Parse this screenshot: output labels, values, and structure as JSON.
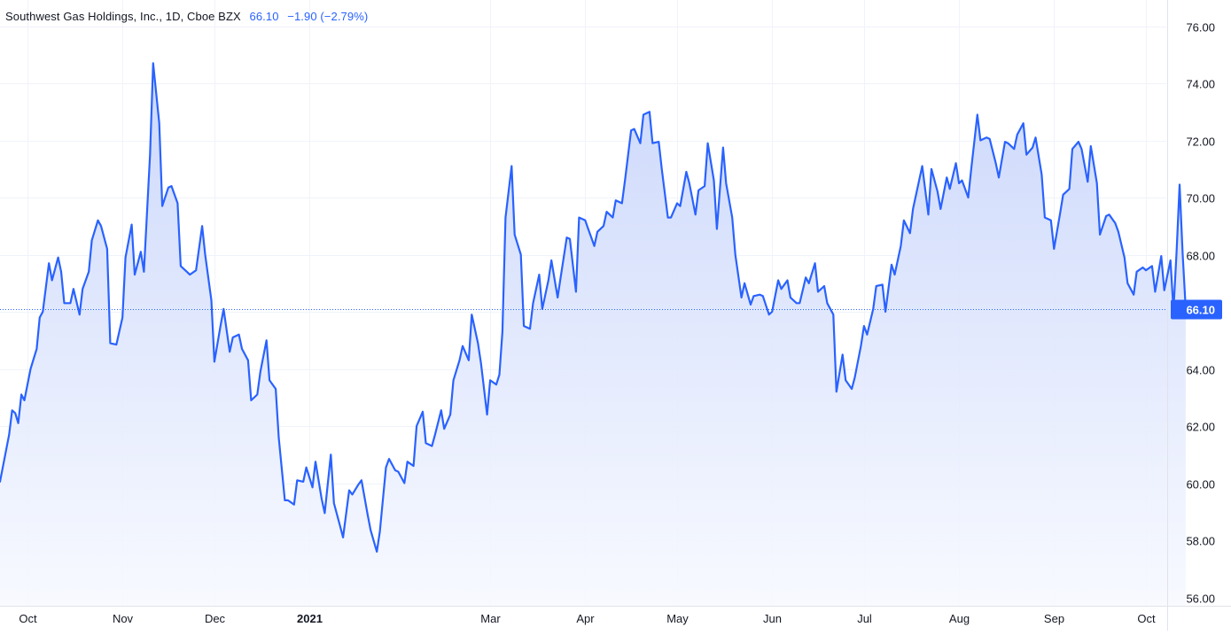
{
  "header": {
    "symbol_title": "Southwest Gas Holdings, Inc., 1D, Cboe BZX",
    "last_value": "66.10",
    "change": "−1.90 (−2.79%)"
  },
  "price_badge": "66.10",
  "colors": {
    "line": "#2962ff",
    "area_top": "#c9d6fb",
    "area_bottom": "#f7f9ff",
    "grid": "#f0f3fa",
    "axis_text": "#131722",
    "badge_bg": "#2962ff"
  },
  "chart_data": {
    "type": "area",
    "title": "Southwest Gas Holdings, Inc., 1D, Cboe BZX",
    "ylim": [
      56,
      76
    ],
    "y_ticks": [
      "56.00",
      "58.00",
      "60.00",
      "62.00",
      "64.00",
      "66.00",
      "68.00",
      "70.00",
      "72.00",
      "74.00",
      "76.00"
    ],
    "x_ticks": [
      {
        "label": "Oct",
        "date": "2020-10-01",
        "bold": false
      },
      {
        "label": "Nov",
        "date": "2020-11-01",
        "bold": false
      },
      {
        "label": "Dec",
        "date": "2020-12-01",
        "bold": false
      },
      {
        "label": "2021",
        "date": "2021-01-01",
        "bold": true
      },
      {
        "label": "Mar",
        "date": "2021-03-01",
        "bold": false
      },
      {
        "label": "Apr",
        "date": "2021-04-01",
        "bold": false
      },
      {
        "label": "May",
        "date": "2021-05-01",
        "bold": false
      },
      {
        "label": "Jun",
        "date": "2021-06-01",
        "bold": false
      },
      {
        "label": "Jul",
        "date": "2021-07-01",
        "bold": false
      },
      {
        "label": "Aug",
        "date": "2021-08-01",
        "bold": false
      },
      {
        "label": "Sep",
        "date": "2021-09-01",
        "bold": false
      },
      {
        "label": "Oct",
        "date": "2021-10-01",
        "bold": false
      }
    ],
    "last_price": 66.1,
    "series": [
      {
        "values": [
          [
            "2020-09-24",
            60.05
          ],
          [
            "2020-09-25",
            61.7
          ],
          [
            "2020-09-26",
            62.55
          ],
          [
            "2020-09-27",
            62.45
          ],
          [
            "2020-09-28",
            62.1
          ],
          [
            "2020-09-29",
            63.1
          ],
          [
            "2020-09-30",
            62.9
          ],
          [
            "2020-10-02",
            64.0
          ],
          [
            "2020-10-04",
            64.7
          ],
          [
            "2020-10-05",
            65.8
          ],
          [
            "2020-10-06",
            66.0
          ],
          [
            "2020-10-08",
            67.7
          ],
          [
            "2020-10-09",
            67.1
          ],
          [
            "2020-10-11",
            67.9
          ],
          [
            "2020-10-12",
            67.4
          ],
          [
            "2020-10-13",
            66.3
          ],
          [
            "2020-10-15",
            66.3
          ],
          [
            "2020-10-16",
            66.8
          ],
          [
            "2020-10-18",
            65.9
          ],
          [
            "2020-10-19",
            66.8
          ],
          [
            "2020-10-21",
            67.4
          ],
          [
            "2020-10-22",
            68.5
          ],
          [
            "2020-10-24",
            69.2
          ],
          [
            "2020-10-25",
            69.0
          ],
          [
            "2020-10-27",
            68.2
          ],
          [
            "2020-10-28",
            64.9
          ],
          [
            "2020-10-30",
            64.85
          ],
          [
            "2020-11-01",
            65.8
          ],
          [
            "2020-11-02",
            67.9
          ],
          [
            "2020-11-04",
            69.05
          ],
          [
            "2020-11-05",
            67.3
          ],
          [
            "2020-11-07",
            68.1
          ],
          [
            "2020-11-08",
            67.4
          ],
          [
            "2020-11-10",
            71.5
          ],
          [
            "2020-11-11",
            74.7
          ],
          [
            "2020-11-13",
            72.6
          ],
          [
            "2020-11-14",
            69.7
          ],
          [
            "2020-11-16",
            70.35
          ],
          [
            "2020-11-17",
            70.4
          ],
          [
            "2020-11-19",
            69.8
          ],
          [
            "2020-11-20",
            67.6
          ],
          [
            "2020-11-22",
            67.4
          ],
          [
            "2020-11-23",
            67.3
          ],
          [
            "2020-11-25",
            67.45
          ],
          [
            "2020-11-27",
            69.0
          ],
          [
            "2020-11-28",
            68.0
          ],
          [
            "2020-11-30",
            66.4
          ],
          [
            "2020-12-01",
            64.25
          ],
          [
            "2020-12-03",
            65.5
          ],
          [
            "2020-12-04",
            66.1
          ],
          [
            "2020-12-06",
            64.6
          ],
          [
            "2020-12-07",
            65.1
          ],
          [
            "2020-12-09",
            65.2
          ],
          [
            "2020-12-10",
            64.7
          ],
          [
            "2020-12-12",
            64.3
          ],
          [
            "2020-12-13",
            62.9
          ],
          [
            "2020-12-15",
            63.1
          ],
          [
            "2020-12-16",
            63.9
          ],
          [
            "2020-12-18",
            65.0
          ],
          [
            "2020-12-19",
            63.6
          ],
          [
            "2020-12-21",
            63.3
          ],
          [
            "2020-12-22",
            61.6
          ],
          [
            "2020-12-24",
            59.4
          ],
          [
            "2020-12-25",
            59.4
          ],
          [
            "2020-12-27",
            59.25
          ],
          [
            "2020-12-28",
            60.1
          ],
          [
            "2020-12-30",
            60.05
          ],
          [
            "2020-12-31",
            60.55
          ],
          [
            "2021-01-02",
            59.85
          ],
          [
            "2021-01-03",
            60.75
          ],
          [
            "2021-01-05",
            59.45
          ],
          [
            "2021-01-06",
            58.95
          ],
          [
            "2021-01-08",
            61.0
          ],
          [
            "2021-01-09",
            59.3
          ],
          [
            "2021-01-11",
            58.5
          ],
          [
            "2021-01-12",
            58.1
          ],
          [
            "2021-01-14",
            59.75
          ],
          [
            "2021-01-15",
            59.6
          ],
          [
            "2021-01-17",
            59.95
          ],
          [
            "2021-01-18",
            60.1
          ],
          [
            "2021-01-20",
            58.9
          ],
          [
            "2021-01-21",
            58.35
          ],
          [
            "2021-01-23",
            57.6
          ],
          [
            "2021-01-24",
            58.3
          ],
          [
            "2021-01-26",
            60.55
          ],
          [
            "2021-01-27",
            60.85
          ],
          [
            "2021-01-29",
            60.45
          ],
          [
            "2021-01-30",
            60.4
          ],
          [
            "2021-02-01",
            60.0
          ],
          [
            "2021-02-02",
            60.75
          ],
          [
            "2021-02-04",
            60.6
          ],
          [
            "2021-02-05",
            62.0
          ],
          [
            "2021-02-07",
            62.5
          ],
          [
            "2021-02-08",
            61.4
          ],
          [
            "2021-02-10",
            61.3
          ],
          [
            "2021-02-11",
            61.7
          ],
          [
            "2021-02-13",
            62.55
          ],
          [
            "2021-02-14",
            61.9
          ],
          [
            "2021-02-16",
            62.4
          ],
          [
            "2021-02-17",
            63.6
          ],
          [
            "2021-02-19",
            64.3
          ],
          [
            "2021-02-20",
            64.8
          ],
          [
            "2021-02-22",
            64.3
          ],
          [
            "2021-02-23",
            65.9
          ],
          [
            "2021-02-25",
            64.9
          ],
          [
            "2021-02-26",
            64.2
          ],
          [
            "2021-02-28",
            62.4
          ],
          [
            "2021-03-01",
            63.6
          ],
          [
            "2021-03-03",
            63.45
          ],
          [
            "2021-03-04",
            63.8
          ],
          [
            "2021-03-05",
            65.3
          ],
          [
            "2021-03-06",
            69.3
          ],
          [
            "2021-03-08",
            71.1
          ],
          [
            "2021-03-09",
            68.7
          ],
          [
            "2021-03-11",
            68.0
          ],
          [
            "2021-03-12",
            65.5
          ],
          [
            "2021-03-14",
            65.4
          ],
          [
            "2021-03-15",
            66.3
          ],
          [
            "2021-03-17",
            67.3
          ],
          [
            "2021-03-18",
            66.1
          ],
          [
            "2021-03-20",
            67.1
          ],
          [
            "2021-03-21",
            67.8
          ],
          [
            "2021-03-23",
            66.5
          ],
          [
            "2021-03-24",
            67.2
          ],
          [
            "2021-03-26",
            68.6
          ],
          [
            "2021-03-27",
            68.55
          ],
          [
            "2021-03-29",
            66.7
          ],
          [
            "2021-03-30",
            69.3
          ],
          [
            "2021-04-01",
            69.2
          ],
          [
            "2021-04-02",
            68.9
          ],
          [
            "2021-04-04",
            68.3
          ],
          [
            "2021-04-05",
            68.8
          ],
          [
            "2021-04-07",
            69.0
          ],
          [
            "2021-04-08",
            69.5
          ],
          [
            "2021-04-10",
            69.3
          ],
          [
            "2021-04-11",
            69.9
          ],
          [
            "2021-04-13",
            69.8
          ],
          [
            "2021-04-14",
            70.6
          ],
          [
            "2021-04-16",
            72.35
          ],
          [
            "2021-04-17",
            72.4
          ],
          [
            "2021-04-19",
            71.9
          ],
          [
            "2021-04-20",
            72.9
          ],
          [
            "2021-04-22",
            73.0
          ],
          [
            "2021-04-23",
            71.9
          ],
          [
            "2021-04-25",
            71.95
          ],
          [
            "2021-04-26",
            71.0
          ],
          [
            "2021-04-28",
            69.3
          ],
          [
            "2021-04-29",
            69.3
          ],
          [
            "2021-05-01",
            69.8
          ],
          [
            "2021-05-02",
            69.7
          ],
          [
            "2021-05-04",
            70.9
          ],
          [
            "2021-05-05",
            70.5
          ],
          [
            "2021-05-07",
            69.4
          ],
          [
            "2021-05-08",
            70.25
          ],
          [
            "2021-05-10",
            70.4
          ],
          [
            "2021-05-11",
            71.9
          ],
          [
            "2021-05-13",
            70.6
          ],
          [
            "2021-05-14",
            68.9
          ],
          [
            "2021-05-16",
            71.75
          ],
          [
            "2021-05-17",
            70.5
          ],
          [
            "2021-05-19",
            69.3
          ],
          [
            "2021-05-20",
            68.0
          ],
          [
            "2021-05-22",
            66.5
          ],
          [
            "2021-05-23",
            67.0
          ],
          [
            "2021-05-25",
            66.25
          ],
          [
            "2021-05-26",
            66.55
          ],
          [
            "2021-05-28",
            66.6
          ],
          [
            "2021-05-29",
            66.55
          ],
          [
            "2021-05-31",
            65.9
          ],
          [
            "2021-06-01",
            66.0
          ],
          [
            "2021-06-03",
            67.1
          ],
          [
            "2021-06-04",
            66.8
          ],
          [
            "2021-06-06",
            67.1
          ],
          [
            "2021-06-07",
            66.5
          ],
          [
            "2021-06-09",
            66.3
          ],
          [
            "2021-06-10",
            66.3
          ],
          [
            "2021-06-12",
            67.2
          ],
          [
            "2021-06-13",
            67.0
          ],
          [
            "2021-06-15",
            67.7
          ],
          [
            "2021-06-16",
            66.7
          ],
          [
            "2021-06-18",
            66.9
          ],
          [
            "2021-06-19",
            66.3
          ],
          [
            "2021-06-21",
            65.9
          ],
          [
            "2021-06-22",
            63.2
          ],
          [
            "2021-06-24",
            64.5
          ],
          [
            "2021-06-25",
            63.6
          ],
          [
            "2021-06-27",
            63.3
          ],
          [
            "2021-06-28",
            63.7
          ],
          [
            "2021-06-30",
            64.8
          ],
          [
            "2021-07-01",
            65.5
          ],
          [
            "2021-07-02",
            65.2
          ],
          [
            "2021-07-04",
            66.1
          ],
          [
            "2021-07-05",
            66.9
          ],
          [
            "2021-07-07",
            66.95
          ],
          [
            "2021-07-08",
            66.0
          ],
          [
            "2021-07-10",
            67.65
          ],
          [
            "2021-07-11",
            67.3
          ],
          [
            "2021-07-13",
            68.3
          ],
          [
            "2021-07-14",
            69.2
          ],
          [
            "2021-07-16",
            68.75
          ],
          [
            "2021-07-17",
            69.6
          ],
          [
            "2021-07-19",
            70.6
          ],
          [
            "2021-07-20",
            71.1
          ],
          [
            "2021-07-22",
            69.4
          ],
          [
            "2021-07-23",
            71.0
          ],
          [
            "2021-07-25",
            70.2
          ],
          [
            "2021-07-26",
            69.6
          ],
          [
            "2021-07-28",
            70.7
          ],
          [
            "2021-07-29",
            70.3
          ],
          [
            "2021-07-31",
            71.2
          ],
          [
            "2021-08-01",
            70.5
          ],
          [
            "2021-08-02",
            70.6
          ],
          [
            "2021-08-04",
            70.0
          ],
          [
            "2021-08-05",
            71.0
          ],
          [
            "2021-08-07",
            72.9
          ],
          [
            "2021-08-08",
            72.0
          ],
          [
            "2021-08-10",
            72.1
          ],
          [
            "2021-08-11",
            72.05
          ],
          [
            "2021-08-13",
            71.2
          ],
          [
            "2021-08-14",
            70.7
          ],
          [
            "2021-08-16",
            71.95
          ],
          [
            "2021-08-17",
            71.9
          ],
          [
            "2021-08-19",
            71.7
          ],
          [
            "2021-08-20",
            72.2
          ],
          [
            "2021-08-22",
            72.6
          ],
          [
            "2021-08-23",
            71.5
          ],
          [
            "2021-08-25",
            71.75
          ],
          [
            "2021-08-26",
            72.1
          ],
          [
            "2021-08-28",
            70.8
          ],
          [
            "2021-08-29",
            69.3
          ],
          [
            "2021-08-31",
            69.2
          ],
          [
            "2021-09-01",
            68.2
          ],
          [
            "2021-09-03",
            69.45
          ],
          [
            "2021-09-04",
            70.1
          ],
          [
            "2021-09-06",
            70.3
          ],
          [
            "2021-09-07",
            71.7
          ],
          [
            "2021-09-09",
            71.95
          ],
          [
            "2021-09-10",
            71.7
          ],
          [
            "2021-09-12",
            70.55
          ],
          [
            "2021-09-13",
            71.8
          ],
          [
            "2021-09-15",
            70.5
          ],
          [
            "2021-09-16",
            68.7
          ],
          [
            "2021-09-18",
            69.35
          ],
          [
            "2021-09-19",
            69.4
          ],
          [
            "2021-09-21",
            69.1
          ],
          [
            "2021-09-22",
            68.8
          ],
          [
            "2021-09-24",
            67.9
          ],
          [
            "2021-09-25",
            67.0
          ],
          [
            "2021-09-27",
            66.6
          ],
          [
            "2021-09-28",
            67.4
          ],
          [
            "2021-09-30",
            67.55
          ],
          [
            "2021-10-01",
            67.45
          ],
          [
            "2021-10-03",
            67.6
          ],
          [
            "2021-10-04",
            66.7
          ],
          [
            "2021-10-06",
            67.95
          ],
          [
            "2021-10-07",
            66.75
          ],
          [
            "2021-10-09",
            67.8
          ],
          [
            "2021-10-10",
            66.05
          ],
          [
            "2021-10-11",
            68.1
          ],
          [
            "2021-10-12",
            70.45
          ],
          [
            "2021-10-13",
            68.0
          ],
          [
            "2021-10-14",
            66.1
          ]
        ]
      }
    ]
  }
}
